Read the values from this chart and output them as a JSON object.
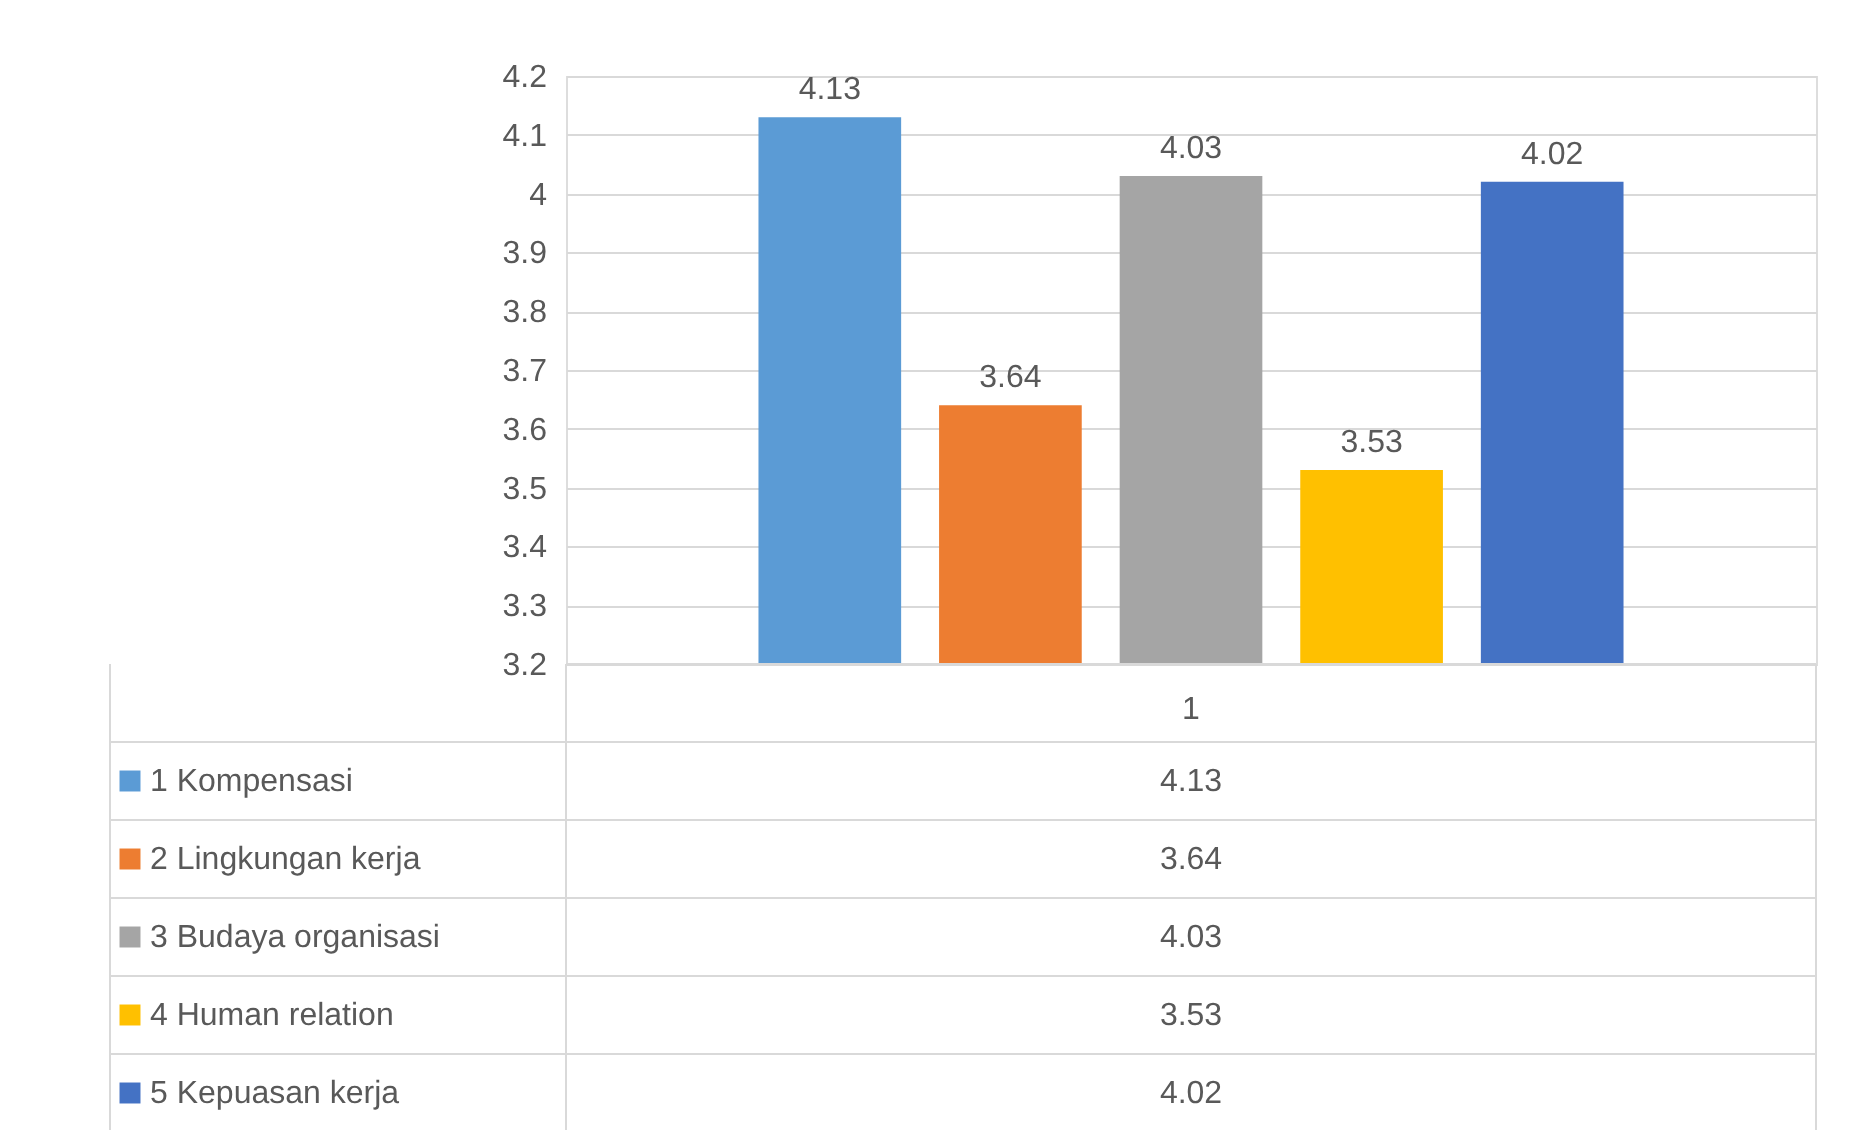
{
  "chart_data": {
    "type": "bar",
    "categories": [
      "1"
    ],
    "series": [
      {
        "name": "1 Kompensasi",
        "color": "#5b9bd5",
        "values": [
          4.13
        ]
      },
      {
        "name": "2 Lingkungan kerja",
        "color": "#ed7d31",
        "values": [
          3.64
        ]
      },
      {
        "name": "3 Budaya organisasi",
        "color": "#a5a5a5",
        "values": [
          4.03
        ]
      },
      {
        "name": "4 Human relation",
        "color": "#ffc000",
        "values": [
          3.53
        ]
      },
      {
        "name": "5 Kepuasan kerja",
        "color": "#4472c4",
        "values": [
          4.02
        ]
      }
    ],
    "ylim": [
      3.2,
      4.2
    ],
    "yticks": [
      3.2,
      3.3,
      3.4,
      3.5,
      3.6,
      3.7,
      3.8,
      3.9,
      4,
      4.1,
      4.2
    ],
    "grid": "y",
    "data_labels": true,
    "legend": "bottom",
    "annotations": [
      "4.13",
      "3.64",
      "4.03",
      "3.53",
      "4.02"
    ]
  }
}
